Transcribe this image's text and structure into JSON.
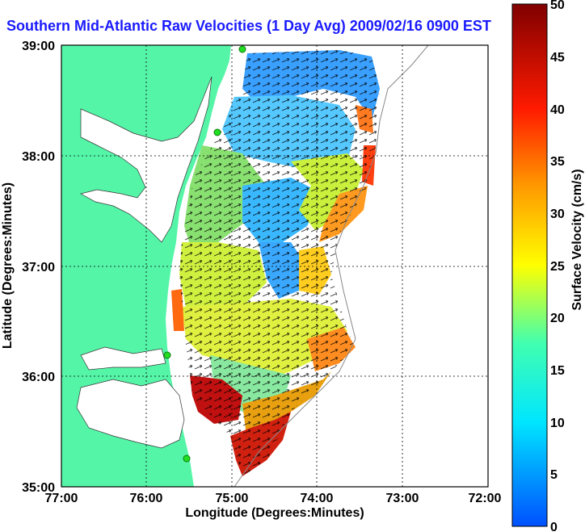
{
  "title": "Southern Mid-Atlantic Raw Velocities (1 Day Avg) 2009/02/16 0900 EST",
  "axes": {
    "xlabel": "Longitude (Degrees:Minutes)",
    "ylabel": "Latitude (Degrees:Minutes)",
    "x_ticks": [
      "77:00",
      "76:00",
      "75:00",
      "74:00",
      "73:00",
      "72:00"
    ],
    "y_ticks": [
      "39:00",
      "38:00",
      "37:00",
      "36:00",
      "35:00"
    ]
  },
  "colorbar": {
    "label": "Surface Velocity (cm/s)",
    "ticks": [
      "50",
      "45",
      "40",
      "35",
      "30",
      "25",
      "20",
      "15",
      "10",
      "5",
      "0"
    ],
    "range": [
      0,
      50
    ]
  },
  "colors": {
    "land": "#55f5a8",
    "ocean": "#ffffff",
    "title": "#1a1aff",
    "station": "#22dd22"
  }
}
